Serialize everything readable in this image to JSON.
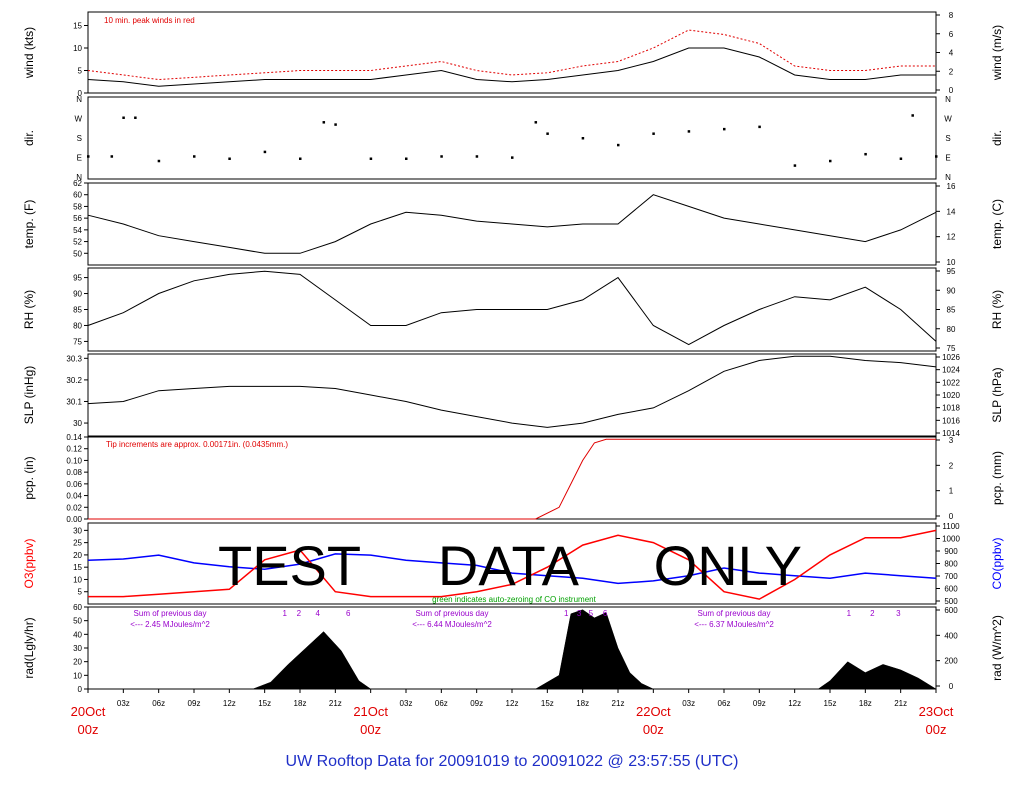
{
  "title": "UW Rooftop Data for 20091019  to  20091022 @ 23:57:55  (UTC)",
  "colors": {
    "title": "#1f2fc8",
    "date_labels": "#e00000",
    "peak_wind": "#e00000",
    "pcp_line": "#e00000",
    "o3": "#ff0000",
    "co": "#0000ff",
    "zeroing": "#00a000",
    "daysum": "#9900cc",
    "axis": "#000000"
  },
  "watermark": "TEST     DATA     ONLY",
  "xaxis": {
    "hour_labels": [
      "03z",
      "06z",
      "09z",
      "12z",
      "15z",
      "18z",
      "21z",
      "03z",
      "06z",
      "09z",
      "12z",
      "15z",
      "18z",
      "21z",
      "03z",
      "06z",
      "09z",
      "12z",
      "15z",
      "18z",
      "21z"
    ],
    "date_labels": [
      {
        "date": "20Oct",
        "hour": "00z"
      },
      {
        "date": "21Oct",
        "hour": "00z"
      },
      {
        "date": "22Oct",
        "hour": "00z"
      },
      {
        "date": "23Oct",
        "hour": "00z"
      }
    ]
  },
  "chart_data": [
    {
      "type": "line",
      "id": "wind",
      "ylabel_left": "wind (kts)",
      "ylabel_right": "wind (m/s)",
      "annotation": "10 min. peak winds in red",
      "ylim": [
        0,
        18
      ],
      "yticks": [
        0,
        5,
        10,
        15
      ],
      "right_ticks": [
        "0",
        "2",
        "4",
        "6",
        "8"
      ],
      "series": [
        {
          "x": [
            0,
            3,
            6,
            9,
            12,
            15,
            18,
            21,
            24,
            27,
            30,
            33,
            36,
            39,
            42,
            45,
            48,
            51,
            54,
            57,
            60,
            63,
            66,
            69,
            72
          ],
          "values": [
            3,
            2.5,
            1.5,
            2,
            2.5,
            3,
            3,
            3,
            3,
            4,
            5,
            3,
            2.5,
            3,
            4,
            5,
            7,
            10,
            10,
            8,
            4,
            3,
            3,
            4,
            4
          ]
        },
        {
          "name": "10 min. peak winds",
          "x": [
            0,
            3,
            6,
            9,
            12,
            15,
            18,
            21,
            24,
            27,
            30,
            33,
            36,
            39,
            42,
            45,
            48,
            51,
            54,
            57,
            60,
            63,
            66,
            69,
            72
          ],
          "values": [
            5,
            4,
            3,
            3.5,
            4,
            4.5,
            5,
            5,
            5,
            6,
            7,
            5,
            4,
            4.5,
            6,
            7,
            10,
            14,
            13,
            11,
            6,
            5,
            5,
            6,
            6
          ]
        }
      ]
    },
    {
      "type": "scatter",
      "id": "dir",
      "ylabel_left": "dir.",
      "ylabel_right": "dir.",
      "ylim": [
        0,
        360
      ],
      "ytick_labels": [
        "N",
        "E",
        "S",
        "W",
        "N"
      ],
      "x": [
        0,
        2,
        3,
        4,
        6,
        9,
        12,
        15,
        18,
        20,
        21,
        24,
        27,
        30,
        33,
        36,
        38,
        39,
        42,
        45,
        48,
        51,
        54,
        57,
        60,
        63,
        66,
        69,
        70,
        72
      ],
      "values": [
        100,
        100,
        270,
        270,
        80,
        100,
        90,
        120,
        90,
        250,
        240,
        90,
        90,
        100,
        100,
        95,
        250,
        200,
        180,
        150,
        200,
        210,
        220,
        230,
        60,
        80,
        110,
        90,
        280,
        100
      ]
    },
    {
      "type": "line",
      "id": "temp",
      "ylabel_left": "temp. (F)",
      "ylabel_right": "temp. (C)",
      "ylim": [
        48,
        62
      ],
      "yticks": [
        50,
        52,
        54,
        56,
        58,
        60,
        62
      ],
      "right_ticks": [
        "10",
        "12",
        "14",
        "16"
      ],
      "x": [
        0,
        3,
        6,
        9,
        12,
        15,
        18,
        21,
        24,
        27,
        30,
        33,
        36,
        39,
        42,
        45,
        48,
        51,
        54,
        57,
        60,
        63,
        66,
        69,
        72
      ],
      "values": [
        56.5,
        55,
        53,
        52,
        51,
        50,
        50,
        52,
        55,
        57,
        56.5,
        55.5,
        55,
        54.5,
        55,
        55,
        60,
        58,
        56,
        55,
        54,
        53,
        52,
        54,
        57
      ]
    },
    {
      "type": "line",
      "id": "rh",
      "ylabel_left": "RH (%)",
      "ylabel_right": "RH (%)",
      "ylim": [
        72,
        98
      ],
      "yticks": [
        75,
        80,
        85,
        90,
        95
      ],
      "right_ticks": [
        "75",
        "80",
        "85",
        "90",
        "95"
      ],
      "x": [
        0,
        3,
        6,
        9,
        12,
        15,
        18,
        21,
        24,
        27,
        30,
        33,
        36,
        39,
        42,
        45,
        48,
        51,
        54,
        57,
        60,
        63,
        66,
        69,
        72
      ],
      "values": [
        80,
        84,
        90,
        94,
        96,
        97,
        96,
        88,
        80,
        80,
        84,
        85,
        85,
        85,
        88,
        95,
        80,
        74,
        80,
        85,
        89,
        88,
        92,
        85,
        75
      ]
    },
    {
      "type": "line",
      "id": "slp",
      "ylabel_left": "SLP (inHg)",
      "ylabel_right": "SLP (hPa)",
      "ylim": [
        29.94,
        30.32
      ],
      "yticks": [
        30.0,
        30.1,
        30.2,
        30.3
      ],
      "right_ticks": [
        "1014",
        "1016",
        "1018",
        "1020",
        "1022",
        "1024",
        "1026"
      ],
      "x": [
        0,
        3,
        6,
        9,
        12,
        15,
        18,
        21,
        24,
        27,
        30,
        33,
        36,
        39,
        42,
        45,
        48,
        51,
        54,
        57,
        60,
        63,
        66,
        69,
        72
      ],
      "values": [
        30.09,
        30.1,
        30.15,
        30.16,
        30.17,
        30.17,
        30.17,
        30.16,
        30.13,
        30.1,
        30.06,
        30.03,
        30.0,
        29.98,
        30.0,
        30.04,
        30.07,
        30.15,
        30.24,
        30.29,
        30.31,
        30.31,
        30.29,
        30.28,
        30.26
      ]
    },
    {
      "type": "line",
      "id": "pcp",
      "ylabel_left": "pcp. (in)",
      "ylabel_right": "pcp. (mm)",
      "annotation": "Tip increments are approx. 0.00171in. (0.0435mm.)",
      "ylim": [
        0,
        0.14
      ],
      "yticks": [
        0.0,
        0.02,
        0.04,
        0.06,
        0.08,
        0.1,
        0.12,
        0.14
      ],
      "ytick_labels": [
        "0.00",
        "0.02",
        "0.04",
        "0.06",
        "0.08",
        "0.10",
        "0.12",
        "0.14"
      ],
      "right_ticks": [
        "0",
        "1",
        "2",
        "3"
      ],
      "x": [
        0,
        38,
        40,
        41,
        42,
        43,
        44,
        46,
        72
      ],
      "values": [
        0,
        0,
        0.02,
        0.06,
        0.1,
        0.13,
        0.136,
        0.136,
        0.136
      ]
    },
    {
      "type": "line",
      "id": "o3co",
      "ylabel_left": "O3(ppbv)",
      "ylabel_right": "CO(ppbv)",
      "annotation": "green indicates auto-zeroing of CO instrument",
      "ylim_left": [
        0,
        33
      ],
      "ylim_right": [
        480,
        1110
      ],
      "yticks": [
        5,
        10,
        15,
        20,
        25,
        30
      ],
      "right_ticks": [
        "500",
        "600",
        "700",
        "800",
        "900",
        "1000",
        "1100"
      ],
      "series": [
        {
          "name": "O3",
          "x": [
            0,
            3,
            6,
            9,
            12,
            15,
            18,
            21,
            24,
            27,
            30,
            33,
            36,
            39,
            42,
            45,
            48,
            51,
            54,
            57,
            60,
            63,
            66,
            69,
            72
          ],
          "values": [
            3,
            3,
            4,
            5,
            6,
            18,
            22,
            5,
            3,
            3,
            3,
            5,
            8,
            15,
            24,
            28,
            25,
            18,
            5,
            2,
            10,
            20,
            27,
            27,
            30
          ]
        },
        {
          "name": "CO",
          "x": [
            0,
            3,
            6,
            9,
            12,
            15,
            18,
            21,
            24,
            27,
            30,
            33,
            36,
            39,
            42,
            45,
            48,
            51,
            54,
            57,
            60,
            63,
            66,
            69,
            72
          ],
          "values": [
            820,
            830,
            860,
            800,
            770,
            750,
            790,
            870,
            860,
            820,
            800,
            780,
            720,
            700,
            680,
            640,
            660,
            700,
            760,
            720,
            700,
            680,
            720,
            700,
            680
          ]
        }
      ]
    },
    {
      "type": "area",
      "id": "rad",
      "ylabel_left": "rad(Lgly/hr)",
      "ylabel_right": "rad (W/m^2)",
      "ylim": [
        0,
        60
      ],
      "yticks": [
        0,
        10,
        20,
        30,
        40,
        50,
        60
      ],
      "right_ticks": [
        "0",
        "200",
        "400",
        "600"
      ],
      "day_sums": [
        {
          "line1": "Sum of previous day",
          "line2": "<--- 2.45 MJoules/m^2"
        },
        {
          "line1": "Sum of previous day",
          "line2": "<--- 6.44 MJoules/m^2"
        },
        {
          "line1": "Sum of previous day",
          "line2": "<--- 6.37 MJoules/m^2"
        }
      ],
      "hour_marks": [
        {
          "x": 16.7,
          "label": "1"
        },
        {
          "x": 17.9,
          "label": "2"
        },
        {
          "x": 19.5,
          "label": "4"
        },
        {
          "x": 22.1,
          "label": "6"
        },
        {
          "x": 40.6,
          "label": "1"
        },
        {
          "x": 41.7,
          "label": "3"
        },
        {
          "x": 42.7,
          "label": "5"
        },
        {
          "x": 43.9,
          "label": "6"
        },
        {
          "x": 64.6,
          "label": "1"
        },
        {
          "x": 66.6,
          "label": "2"
        },
        {
          "x": 68.8,
          "label": "3"
        }
      ],
      "x": [
        0,
        14,
        15.5,
        17,
        18.5,
        20,
        21.5,
        23,
        24,
        38,
        40,
        41,
        42,
        43,
        44,
        45,
        46,
        47,
        48,
        62,
        63,
        64.5,
        66,
        67.5,
        69,
        70.5,
        72
      ],
      "values": [
        0,
        0,
        5,
        18,
        30,
        42,
        28,
        6,
        0,
        0,
        10,
        55,
        58,
        52,
        56,
        30,
        12,
        4,
        0,
        0,
        6,
        20,
        12,
        18,
        14,
        8,
        0
      ]
    }
  ]
}
